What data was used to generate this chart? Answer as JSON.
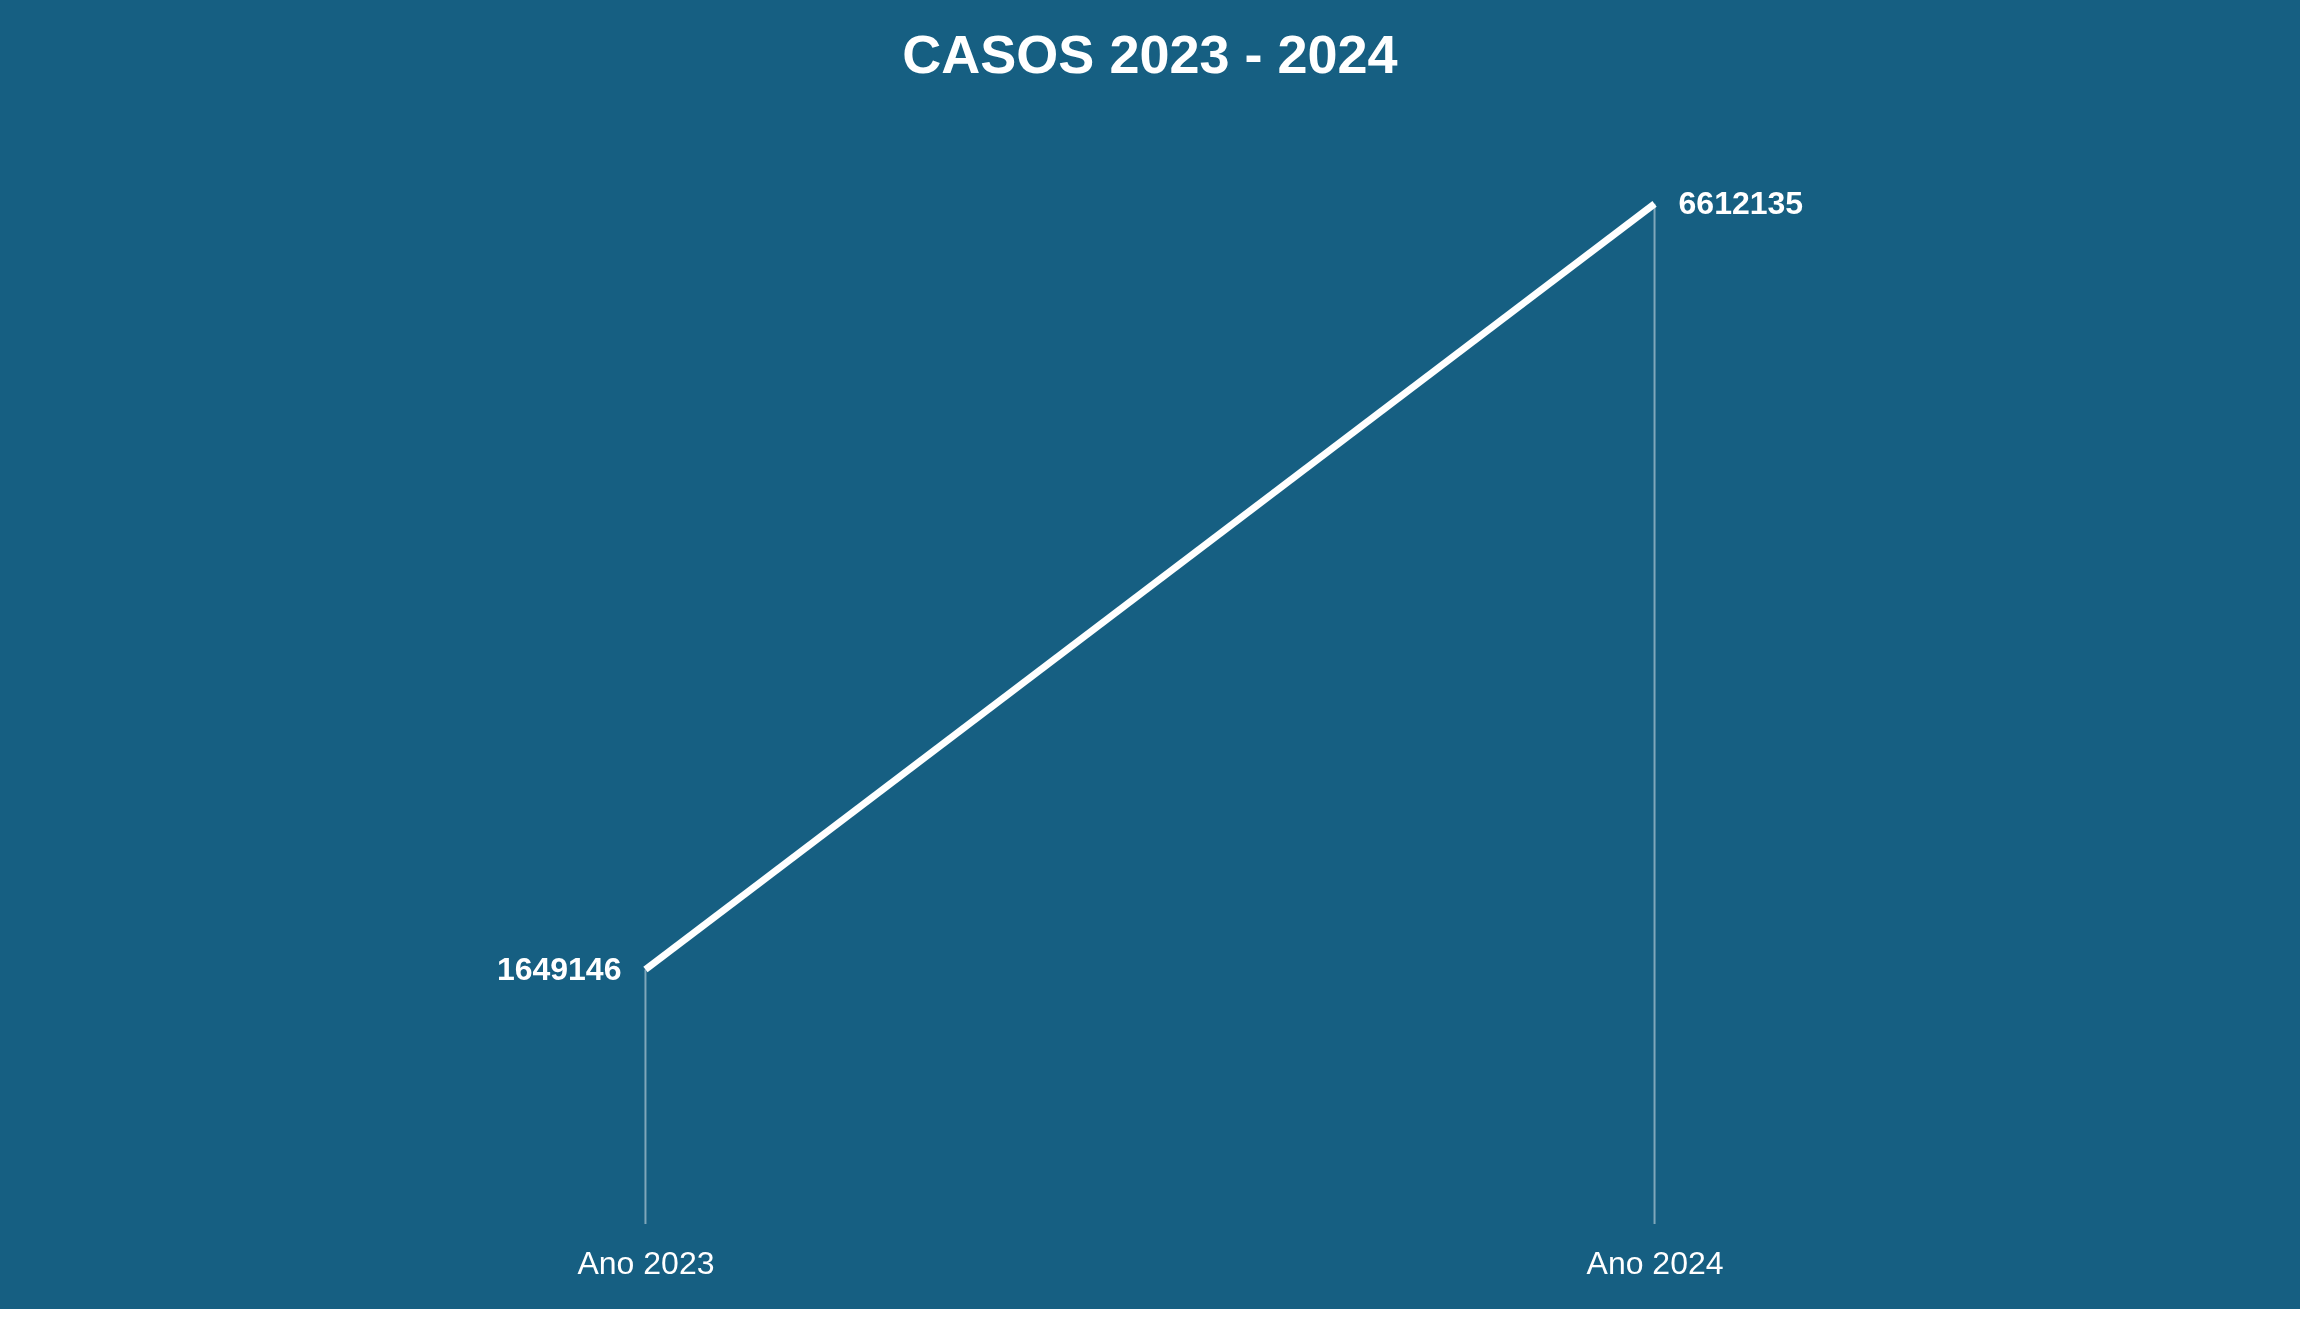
{
  "chart_data": {
    "type": "line",
    "title": "CASOS 2023 - 2024",
    "categories": [
      "Ano 2023",
      "Ano 2024"
    ],
    "series": [
      {
        "color": "#ffffff",
        "values": [
          1649146,
          6612135
        ]
      }
    ],
    "data_labels": true,
    "grid": "x",
    "marker": "none",
    "line_style": "solid"
  }
}
